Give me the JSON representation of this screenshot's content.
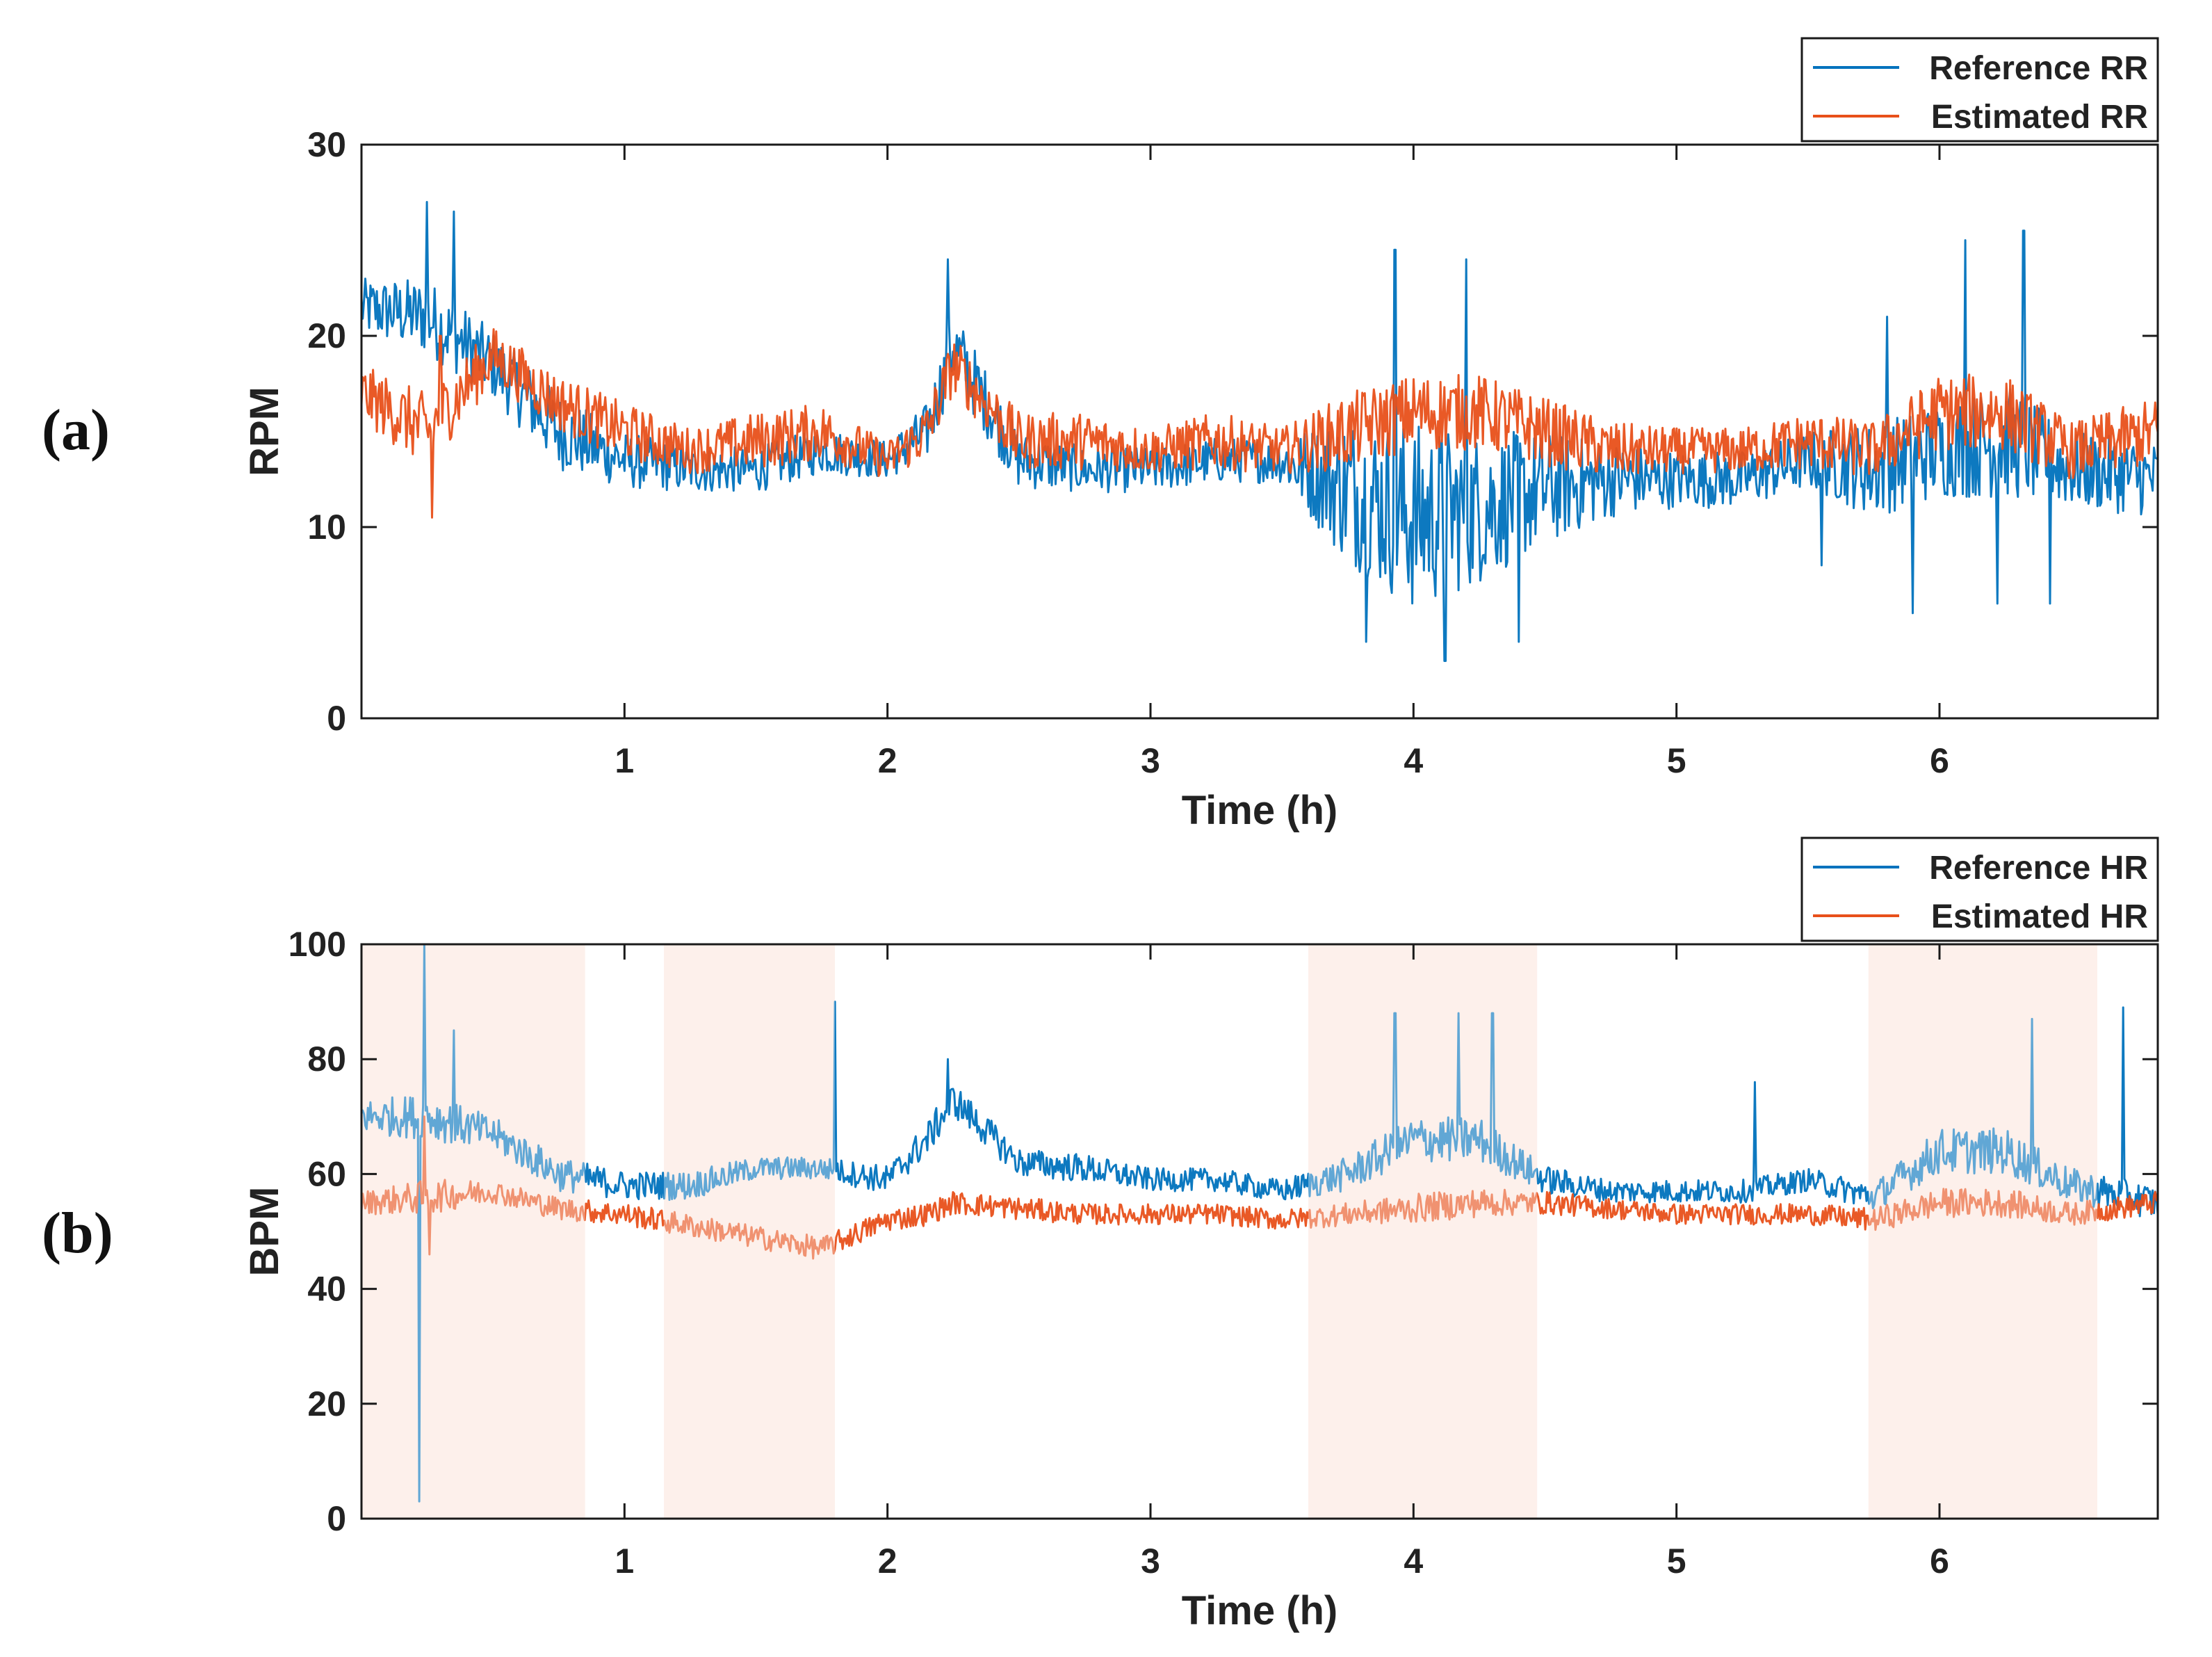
{
  "panels": [
    {
      "label": "(a)"
    },
    {
      "label": "(b)"
    }
  ],
  "colors": {
    "reference": "#0072BD",
    "estimated": "#E8501A",
    "shade": "#FCE9E1",
    "axis": "#1a1a1a"
  },
  "chart_data": [
    {
      "type": "line",
      "panel": "(a)",
      "title": "",
      "xlabel": "Time (h)",
      "ylabel": "RPM",
      "xlim": [
        0,
        6.83
      ],
      "ylim": [
        0,
        30
      ],
      "xticks": [
        1,
        2,
        3,
        4,
        5,
        6
      ],
      "yticks": [
        0,
        10,
        20,
        30
      ],
      "grid": false,
      "legend_position": "top-right (outside)",
      "series": [
        {
          "name": "Reference RR",
          "x": [
            0,
            0.25,
            0.5,
            0.75,
            1,
            1.25,
            1.5,
            1.75,
            2,
            2.15,
            2.25,
            2.5,
            2.75,
            3,
            3.25,
            3.5,
            3.75,
            4,
            4.25,
            4.5,
            4.75,
            5,
            5.25,
            5.5,
            5.75,
            6,
            6.25,
            6.5,
            6.83
          ],
          "values": [
            21.5,
            21,
            18.5,
            15,
            13.5,
            13,
            13,
            14,
            13.5,
            15,
            19.5,
            13.5,
            13,
            13,
            13.5,
            13.5,
            12,
            10.5,
            11,
            12,
            12.5,
            12.5,
            12.5,
            13.5,
            13,
            14,
            14.5,
            13,
            12.5
          ],
          "spikes": [
            {
              "x": 0.25,
              "y": 27
            },
            {
              "x": 0.35,
              "y": 26.5
            },
            {
              "x": 2.23,
              "y": 24
            },
            {
              "x": 3.82,
              "y": 4
            },
            {
              "x": 3.93,
              "y": 24.5
            },
            {
              "x": 4.12,
              "y": 3
            },
            {
              "x": 4.2,
              "y": 24
            },
            {
              "x": 4.4,
              "y": 4
            },
            {
              "x": 5.55,
              "y": 8
            },
            {
              "x": 5.8,
              "y": 21
            },
            {
              "x": 5.9,
              "y": 5.5
            },
            {
              "x": 6.1,
              "y": 25
            },
            {
              "x": 6.22,
              "y": 6
            },
            {
              "x": 6.32,
              "y": 25.5
            },
            {
              "x": 6.42,
              "y": 6
            }
          ],
          "spread": [
            1.5,
            2,
            1.8,
            2,
            1.5,
            1.2,
            1.2,
            1.2,
            1,
            1.5,
            2,
            1.5,
            1.2,
            1.2,
            1.2,
            1.2,
            4,
            5,
            4,
            3,
            2,
            1.5,
            1.5,
            1.5,
            2.5,
            2.5,
            3,
            2,
            2
          ]
        },
        {
          "name": "Estimated RR",
          "x": [
            0,
            0.25,
            0.5,
            0.75,
            1,
            1.25,
            1.5,
            1.75,
            2,
            2.15,
            2.25,
            2.5,
            2.75,
            3,
            3.25,
            3.5,
            3.75,
            4,
            4.25,
            4.5,
            4.75,
            5,
            5.25,
            5.5,
            5.75,
            6,
            6.25,
            6.5,
            6.83
          ],
          "values": [
            17,
            15,
            19,
            16.5,
            15,
            14,
            14.5,
            15,
            13.5,
            15,
            18.5,
            14.5,
            14.5,
            14,
            14.5,
            14,
            15,
            16,
            16,
            15,
            14,
            14,
            14,
            14.5,
            14,
            16,
            16,
            14,
            15
          ],
          "spikes": [
            {
              "x": 0.27,
              "y": 10.5
            },
            {
              "x": 0.3,
              "y": 20
            }
          ],
          "spread": [
            1.5,
            2,
            1.5,
            1.5,
            1.5,
            1.2,
            1.5,
            1.5,
            1,
            1.5,
            1.5,
            1.5,
            1.5,
            1.2,
            1.5,
            1.2,
            2,
            2,
            2,
            1.8,
            1.5,
            1.2,
            1.2,
            1.5,
            1.5,
            2,
            2,
            1.5,
            1.8
          ]
        }
      ],
      "legend": [
        "Reference RR",
        "Estimated RR"
      ]
    },
    {
      "type": "line",
      "panel": "(b)",
      "title": "",
      "xlabel": "Time (h)",
      "ylabel": "BPM",
      "xlim": [
        0,
        6.83
      ],
      "ylim": [
        0,
        100
      ],
      "xticks": [
        1,
        2,
        3,
        4,
        5,
        6
      ],
      "yticks": [
        0,
        20,
        40,
        60,
        80,
        100
      ],
      "grid": false,
      "legend_position": "top-right (outside)",
      "shaded_intervals": [
        [
          0,
          0.85
        ],
        [
          1.15,
          1.8
        ],
        [
          3.6,
          4.47
        ],
        [
          5.73,
          6.6
        ]
      ],
      "series": [
        {
          "name": "Reference HR",
          "x": [
            0,
            0.25,
            0.5,
            0.75,
            1,
            1.25,
            1.5,
            1.75,
            2,
            2.15,
            2.25,
            2.5,
            2.75,
            3,
            3.25,
            3.5,
            3.75,
            4,
            4.25,
            4.5,
            4.75,
            5,
            5.25,
            5.5,
            5.75,
            6,
            6.25,
            6.5,
            6.83
          ],
          "values": [
            70,
            70,
            67,
            60,
            58,
            58,
            61,
            61,
            59,
            66,
            73,
            62,
            61,
            59,
            59,
            57,
            60,
            66,
            66,
            59,
            57,
            57,
            57,
            59,
            56,
            64,
            64,
            58,
            55
          ],
          "spikes": [
            {
              "x": 0.22,
              "y": 3
            },
            {
              "x": 0.24,
              "y": 100
            },
            {
              "x": 0.35,
              "y": 85
            },
            {
              "x": 1.8,
              "y": 90
            },
            {
              "x": 2.23,
              "y": 80
            },
            {
              "x": 3.93,
              "y": 88
            },
            {
              "x": 4.17,
              "y": 88
            },
            {
              "x": 4.3,
              "y": 88
            },
            {
              "x": 5.3,
              "y": 76
            },
            {
              "x": 6.35,
              "y": 87
            },
            {
              "x": 6.7,
              "y": 89
            }
          ],
          "spread": [
            3,
            4,
            3,
            3,
            2.5,
            2.5,
            2,
            2,
            2.5,
            3,
            3,
            2.5,
            2.5,
            2,
            2,
            2,
            3,
            4,
            4,
            2.5,
            2,
            2,
            2,
            2,
            2.5,
            4,
            4,
            3,
            3
          ]
        },
        {
          "name": "Estimated HR",
          "x": [
            0,
            0.25,
            0.5,
            0.75,
            1,
            1.25,
            1.5,
            1.75,
            2,
            2.15,
            2.25,
            2.5,
            2.75,
            3,
            3.25,
            3.5,
            3.75,
            4,
            4.25,
            4.5,
            4.75,
            5,
            5.25,
            5.5,
            5.75,
            6,
            6.25,
            6.5,
            6.83
          ],
          "values": [
            55,
            56,
            57,
            54,
            53,
            51,
            49,
            47,
            52,
            53,
            55,
            54,
            53,
            53,
            53,
            52,
            53,
            54,
            55,
            55,
            54,
            53,
            53,
            53,
            52,
            55,
            55,
            53,
            55
          ],
          "spikes": [
            {
              "x": 0.24,
              "y": 70
            },
            {
              "x": 0.26,
              "y": 46
            }
          ],
          "spread": [
            2,
            3,
            2,
            2,
            2,
            2,
            2,
            2,
            2,
            2,
            2,
            2,
            1.8,
            1.8,
            1.8,
            1.8,
            2,
            2.5,
            2.5,
            2,
            1.8,
            1.8,
            1.8,
            1.8,
            2,
            2.5,
            2.5,
            2,
            2
          ]
        }
      ],
      "legend": [
        "Reference HR",
        "Estimated HR"
      ]
    }
  ]
}
